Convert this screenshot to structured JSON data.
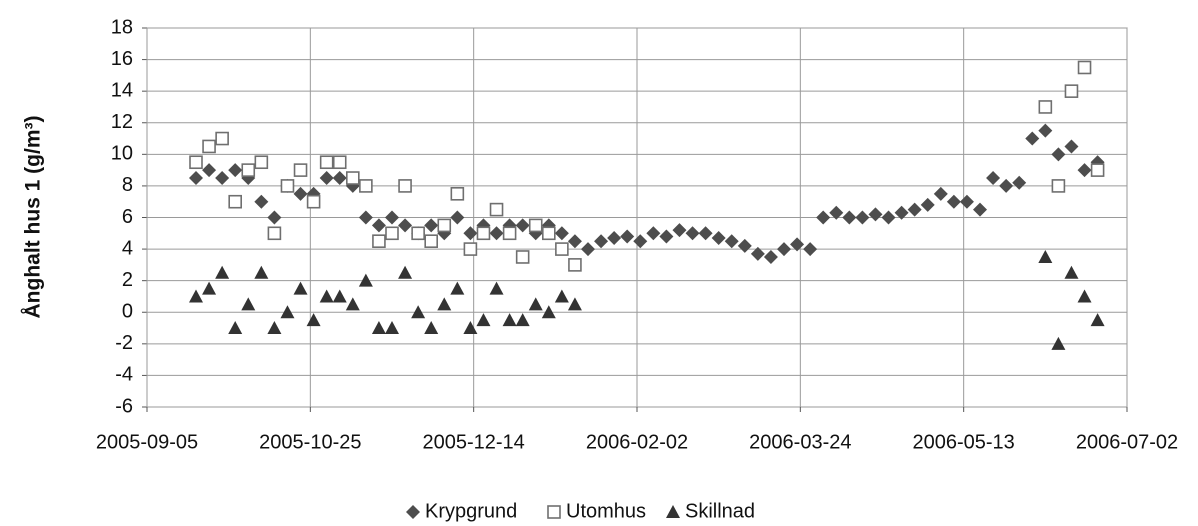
{
  "chart_data": {
    "type": "scatter",
    "y_label": "Ånghalt hus 1 (g/m³)",
    "x": [
      "2005-09-20",
      "2005-09-24",
      "2005-09-28",
      "2005-10-02",
      "2005-10-06",
      "2005-10-10",
      "2005-10-14",
      "2005-10-18",
      "2005-10-22",
      "2005-10-26",
      "2005-10-30",
      "2005-11-03",
      "2005-11-07",
      "2005-11-11",
      "2005-11-15",
      "2005-11-19",
      "2005-11-23",
      "2005-11-27",
      "2005-12-01",
      "2005-12-05",
      "2005-12-09",
      "2005-12-13",
      "2005-12-17",
      "2005-12-21",
      "2005-12-25",
      "2005-12-29",
      "2006-01-02",
      "2006-01-06",
      "2006-01-10",
      "2006-01-14",
      "2006-01-18",
      "2006-01-22",
      "2006-01-26",
      "2006-01-30",
      "2006-02-03",
      "2006-02-07",
      "2006-02-11",
      "2006-02-15",
      "2006-02-19",
      "2006-02-23",
      "2006-02-27",
      "2006-03-03",
      "2006-03-07",
      "2006-03-11",
      "2006-03-15",
      "2006-03-19",
      "2006-03-23",
      "2006-03-27",
      "2006-03-31",
      "2006-04-04",
      "2006-04-08",
      "2006-04-12",
      "2006-04-16",
      "2006-04-20",
      "2006-04-24",
      "2006-04-28",
      "2006-05-02",
      "2006-05-06",
      "2006-05-10",
      "2006-05-14",
      "2006-05-18",
      "2006-05-22",
      "2006-05-26",
      "2006-05-30",
      "2006-06-03",
      "2006-06-07",
      "2006-06-11",
      "2006-06-15",
      "2006-06-19",
      "2006-06-23"
    ],
    "series": [
      {
        "name": "Krypgrund",
        "marker": "diamond",
        "color": "#4d4d4d",
        "values": [
          8.5,
          9,
          8.5,
          9,
          8.5,
          7,
          6,
          8,
          7.5,
          7.5,
          8.5,
          8.5,
          8,
          6,
          5.5,
          6,
          5.5,
          5,
          5.5,
          5,
          6,
          5,
          5.5,
          5,
          5.5,
          5.5,
          5,
          5.5,
          5,
          4.5,
          4,
          4.5,
          4.7,
          4.8,
          4.5,
          5,
          4.8,
          5.2,
          5,
          5,
          4.7,
          4.5,
          4.2,
          3.7,
          3.5,
          4,
          4.3,
          4,
          6,
          6.3,
          6,
          6,
          6.2,
          6,
          6.3,
          6.5,
          6.8,
          7.5,
          7,
          7,
          6.5,
          8.5,
          8,
          8.2,
          11,
          11.5,
          10,
          10.5,
          9,
          9.5
        ]
      },
      {
        "name": "Utomhus",
        "marker": "square",
        "color": "#6f6f6f",
        "values": [
          9.5,
          10.5,
          11,
          7,
          9,
          9.5,
          5,
          8,
          9,
          7,
          9.5,
          9.5,
          8.5,
          8,
          4.5,
          5,
          8,
          5,
          4.5,
          5.5,
          7.5,
          4,
          5,
          6.5,
          5,
          3.5,
          5.5,
          5,
          4,
          3,
          null,
          null,
          null,
          null,
          null,
          null,
          null,
          null,
          null,
          null,
          null,
          null,
          null,
          null,
          null,
          null,
          null,
          null,
          null,
          null,
          null,
          null,
          null,
          null,
          null,
          null,
          null,
          null,
          null,
          null,
          null,
          null,
          null,
          null,
          null,
          13,
          8,
          14,
          15.5,
          9
        ]
      },
      {
        "name": "Skillnad",
        "marker": "triangle",
        "color": "#333333",
        "values": [
          1,
          1.5,
          2.5,
          -1,
          0.5,
          2.5,
          -1,
          0,
          1.5,
          -0.5,
          1,
          1,
          0.5,
          2,
          -1,
          -1,
          2.5,
          0,
          -1,
          0.5,
          1.5,
          -1,
          -0.5,
          1.5,
          -0.5,
          -0.5,
          0.5,
          0,
          1,
          0.5,
          null,
          null,
          null,
          null,
          null,
          null,
          null,
          null,
          null,
          null,
          null,
          null,
          null,
          null,
          null,
          null,
          null,
          null,
          null,
          null,
          null,
          null,
          null,
          null,
          null,
          null,
          null,
          null,
          null,
          null,
          null,
          null,
          null,
          null,
          null,
          3.5,
          -2,
          2.5,
          1,
          -0.5
        ]
      }
    ],
    "xlim": [
      "2005-09-05",
      "2006-07-02"
    ],
    "xticks": [
      "2005-09-05",
      "2005-10-25",
      "2005-12-14",
      "2006-02-02",
      "2006-03-24",
      "2006-05-13",
      "2006-07-02"
    ],
    "ylim": [
      -6,
      18
    ],
    "yticks": [
      -6,
      -4,
      -2,
      0,
      2,
      4,
      6,
      8,
      10,
      12,
      14,
      16,
      18
    ],
    "grid": true,
    "legend": "bottom"
  }
}
